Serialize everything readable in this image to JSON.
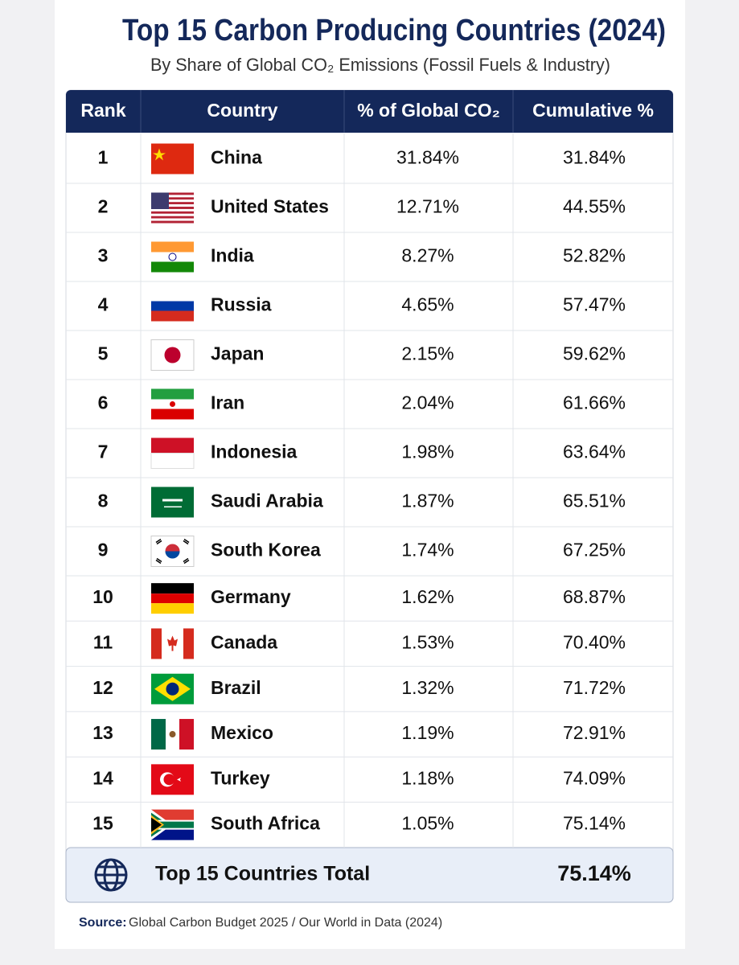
{
  "header": {
    "title": "Top 15 Carbon Producing Countries (2024)",
    "subtitle": "By Share of Global CO₂ Emissions (Fossil Fuels & Industry)"
  },
  "table": {
    "columns": [
      "Rank",
      "Country",
      "% of Global CO₂",
      "Cumulative %"
    ],
    "rows": [
      [
        "1",
        "China",
        "31.84%",
        "31.84%"
      ],
      [
        "2",
        "United States",
        "12.71%",
        "44.55%"
      ],
      [
        "3",
        "India",
        "8.27%",
        "52.82%"
      ],
      [
        "4",
        "Russia",
        "4.65%",
        "57.47%"
      ],
      [
        "5",
        "Japan",
        "2.15%",
        "59.62%"
      ],
      [
        "6",
        "Iran",
        "2.04%",
        "61.66%"
      ],
      [
        "7",
        "Indonesia",
        "1.98%",
        "63.64%"
      ],
      [
        "8",
        "Saudi Arabia",
        "1.87%",
        "65.51%"
      ],
      [
        "9",
        "South Korea",
        "1.74%",
        "67.25%"
      ],
      [
        "10",
        "Germany",
        "1.62%",
        "68.87%"
      ],
      [
        "11",
        "Canada",
        "1.53%",
        "70.40%"
      ],
      [
        "12",
        "Brazil",
        "1.32%",
        "71.72%"
      ],
      [
        "13",
        "Mexico",
        "1.19%",
        "72.91%"
      ],
      [
        "14",
        "Turkey",
        "1.18%",
        "74.09%"
      ],
      [
        "15",
        "South Africa",
        "1.05%",
        "75.14%"
      ]
    ],
    "total": {
      "label": "Top 15 Countries Total",
      "value": "75.14%"
    }
  },
  "source": {
    "label": "Source:",
    "text": "Global Carbon Budget 2025 / Our World in Data (2024)"
  }
}
